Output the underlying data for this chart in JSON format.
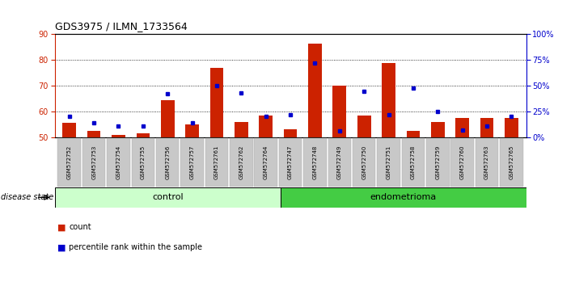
{
  "title": "GDS3975 / ILMN_1733564",
  "samples": [
    "GSM572752",
    "GSM572753",
    "GSM572754",
    "GSM572755",
    "GSM572756",
    "GSM572757",
    "GSM572761",
    "GSM572762",
    "GSM572764",
    "GSM572747",
    "GSM572748",
    "GSM572749",
    "GSM572750",
    "GSM572751",
    "GSM572758",
    "GSM572759",
    "GSM572760",
    "GSM572763",
    "GSM572765"
  ],
  "red_heights": [
    55.5,
    52.5,
    51.0,
    51.5,
    64.5,
    55.0,
    77.0,
    56.0,
    58.5,
    53.0,
    86.5,
    70.0,
    58.5,
    79.0,
    52.5,
    56.0,
    57.5,
    57.5,
    57.5
  ],
  "blue_pcts": [
    20,
    14,
    11,
    11,
    42,
    14,
    50,
    43,
    20,
    22,
    72,
    6,
    45,
    22,
    48,
    25,
    7,
    11,
    20
  ],
  "control_count": 9,
  "endometrioma_count": 10,
  "ylim_left": [
    50,
    90
  ],
  "ylim_right": [
    0,
    100
  ],
  "yticks_left": [
    50,
    60,
    70,
    80,
    90
  ],
  "yticks_right": [
    0,
    25,
    50,
    75,
    100
  ],
  "ytick_labels_right": [
    "0%",
    "25%",
    "50%",
    "75%",
    "100%"
  ],
  "bar_color": "#cc2200",
  "blue_color": "#0000cc",
  "control_bg": "#ccffcc",
  "endometrioma_bg": "#44cc44",
  "sample_bg": "#c8c8c8",
  "legend_count": "count",
  "legend_pct": "percentile rank within the sample",
  "disease_state_label": "disease state",
  "control_label": "control",
  "endometrioma_label": "endometrioma"
}
